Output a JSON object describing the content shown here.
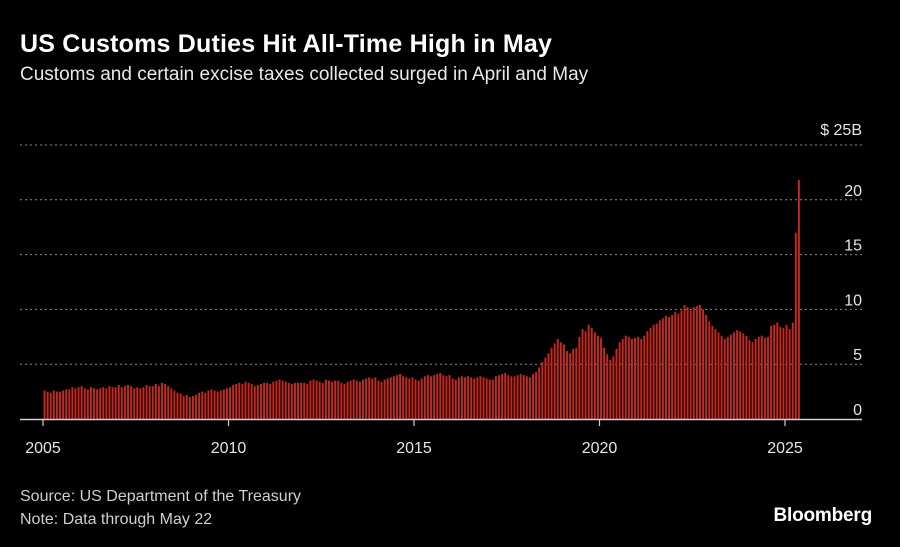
{
  "title": "US Customs Duties Hit All-Time High in May",
  "subtitle": "Customs and certain excise taxes collected surged in April and May",
  "source": "Source: US Department of the Treasury",
  "note": "Note: Data through May 22",
  "brand": "Bloomberg",
  "chart_data": {
    "type": "bar",
    "title": "US Customs Duties Hit All-Time High in May",
    "subtitle": "Customs and certain excise taxes collected surged in April and May",
    "xlabel": "",
    "ylabel": "",
    "unit": "$ billions",
    "bar_color": "#c8281e",
    "grid": "horizontal dotted",
    "xlim": [
      "2004-12",
      "2026-12"
    ],
    "ylim": [
      0,
      25
    ],
    "x_ticks": [
      "2005",
      "2010",
      "2015",
      "2020",
      "2025"
    ],
    "y_ticks": [
      {
        "value": 0,
        "label": "0"
      },
      {
        "value": 5,
        "label": "5"
      },
      {
        "value": 10,
        "label": "10"
      },
      {
        "value": 15,
        "label": "15"
      },
      {
        "value": 20,
        "label": "20"
      },
      {
        "value": 25,
        "label": "$ 25B"
      }
    ],
    "start_month": "2005-01",
    "end_month": "2025-05",
    "annual_values": {
      "2005": [
        2.6,
        2.5,
        2.4,
        2.6,
        2.5,
        2.5,
        2.6,
        2.7,
        2.7,
        2.9,
        2.8,
        2.9
      ],
      "2006": [
        3.0,
        2.8,
        2.7,
        2.9,
        2.8,
        2.7,
        2.8,
        2.9,
        2.8,
        3.0,
        2.9,
        2.9
      ],
      "2007": [
        3.1,
        2.9,
        3.0,
        3.1,
        3.0,
        2.8,
        2.9,
        2.8,
        2.9,
        3.1,
        3.0,
        3.0
      ],
      "2008": [
        3.2,
        3.0,
        3.3,
        3.2,
        3.0,
        2.8,
        2.6,
        2.4,
        2.3,
        2.1,
        2.2,
        2.0
      ],
      "2009": [
        2.1,
        2.2,
        2.4,
        2.5,
        2.4,
        2.6,
        2.7,
        2.6,
        2.5,
        2.6,
        2.7,
        2.8
      ],
      "2010": [
        2.9,
        3.1,
        3.2,
        3.3,
        3.2,
        3.4,
        3.3,
        3.2,
        3.0,
        3.1,
        3.2,
        3.3
      ],
      "2011": [
        3.3,
        3.2,
        3.4,
        3.5,
        3.6,
        3.5,
        3.4,
        3.3,
        3.2,
        3.3,
        3.3,
        3.3
      ],
      "2012": [
        3.3,
        3.2,
        3.5,
        3.6,
        3.5,
        3.4,
        3.3,
        3.6,
        3.5,
        3.4,
        3.5,
        3.5
      ],
      "2013": [
        3.3,
        3.2,
        3.4,
        3.5,
        3.6,
        3.5,
        3.4,
        3.6,
        3.7,
        3.8,
        3.7,
        3.8
      ],
      "2014": [
        3.5,
        3.4,
        3.6,
        3.7,
        3.8,
        3.9,
        4.0,
        4.1,
        3.9,
        3.8,
        3.7,
        3.8
      ],
      "2015": [
        3.6,
        3.5,
        3.7,
        3.9,
        4.0,
        3.9,
        4.0,
        4.1,
        4.2,
        4.0,
        3.9,
        4.0
      ],
      "2016": [
        3.7,
        3.6,
        3.8,
        3.9,
        3.8,
        3.9,
        3.8,
        3.7,
        3.8,
        3.9,
        3.8,
        3.7
      ],
      "2017": [
        3.6,
        3.6,
        3.9,
        4.0,
        4.1,
        4.2,
        4.0,
        3.9,
        3.9,
        4.0,
        4.1,
        4.0
      ],
      "2018": [
        3.9,
        3.8,
        4.1,
        4.3,
        4.7,
        5.2,
        5.6,
        6.0,
        6.5,
        6.9,
        7.3,
        7.0
      ],
      "2019": [
        6.8,
        6.2,
        6.0,
        6.4,
        6.5,
        7.5,
        8.2,
        8.0,
        8.6,
        8.3,
        7.9,
        7.6
      ],
      "2020": [
        7.4,
        6.5,
        5.9,
        5.4,
        5.7,
        6.4,
        7.0,
        7.3,
        7.6,
        7.5,
        7.3,
        7.4
      ],
      "2021": [
        7.5,
        7.3,
        7.6,
        8.0,
        8.3,
        8.6,
        8.7,
        9.0,
        9.2,
        9.4,
        9.3,
        9.5
      ],
      "2022": [
        9.8,
        9.6,
        9.9,
        10.4,
        10.2,
        9.9,
        10.2,
        10.3,
        10.4,
        10.0,
        9.5,
        8.9
      ],
      "2023": [
        8.5,
        8.2,
        7.9,
        7.6,
        7.3,
        7.5,
        7.7,
        7.9,
        8.1,
        8.0,
        7.8,
        7.6
      ],
      "2024": [
        7.2,
        7.0,
        7.3,
        7.5,
        7.6,
        7.4,
        7.5,
        8.5,
        8.6,
        8.8,
        8.4,
        8.3
      ],
      "2025": [
        8.6,
        8.2,
        8.8,
        17.0,
        21.8
      ]
    }
  }
}
